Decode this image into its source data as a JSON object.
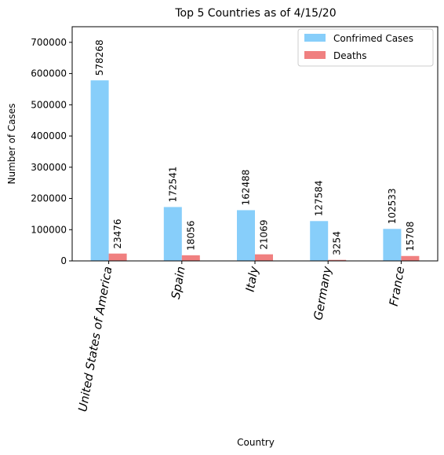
{
  "chart_data": {
    "type": "bar",
    "title": "Top 5 Countries as of 4/15/20",
    "xlabel": "Country",
    "ylabel": "Number of Cases",
    "ylim": [
      0,
      750000
    ],
    "yticks": [
      0,
      100000,
      200000,
      300000,
      400000,
      500000,
      600000,
      700000
    ],
    "grid": false,
    "legend_position": "top-right",
    "categories": [
      "United States of America",
      "Spain",
      "Italy",
      "Germany",
      "France"
    ],
    "series": [
      {
        "name": "Confrimed Cases",
        "color": "#87cefa",
        "values": [
          578268,
          172541,
          162488,
          127584,
          102533
        ]
      },
      {
        "name": "Deaths",
        "color": "#f08080",
        "values": [
          23476,
          18056,
          21069,
          3254,
          15708
        ]
      }
    ]
  }
}
